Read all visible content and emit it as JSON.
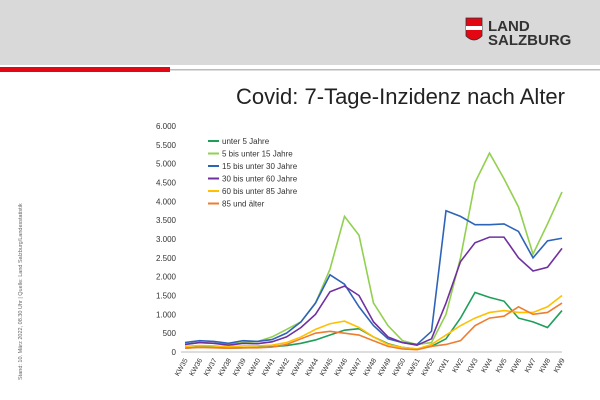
{
  "header": {
    "logo_line1": "LAND",
    "logo_line2": "SALZBURG"
  },
  "side_note": "Stand: 10. März 2022, 08.30 Uhr | Quelle: Land Salzburg/Landesstatistik",
  "chart_data": {
    "type": "line",
    "title": "Covid: 7-Tage-Inzidenz nach Alter",
    "categories": [
      "KW35",
      "KW36",
      "KW37",
      "KW38",
      "KW39",
      "KW40",
      "KW41",
      "KW42",
      "KW43",
      "KW44",
      "KW45",
      "KW46",
      "KW47",
      "KW48",
      "KW49",
      "KW50",
      "KW51",
      "KW52",
      "KW1",
      "KW2",
      "KW3",
      "KW4",
      "KW5",
      "KW6",
      "KW7",
      "KW8",
      "KW9"
    ],
    "ylim": [
      0,
      6000
    ],
    "yticks": [
      0,
      {
        "value": 500,
        "label": "500"
      },
      {
        "value": 1000,
        "label": "1.000"
      },
      {
        "value": 1500,
        "label": "1.500"
      },
      {
        "value": 2000,
        "label": "2.000"
      },
      {
        "value": 2500,
        "label": "2.500"
      },
      {
        "value": 3000,
        "label": "3.000"
      },
      {
        "value": 3500,
        "label": "3.500"
      },
      {
        "value": 4000,
        "label": "4.000"
      },
      {
        "value": 4500,
        "label": "4.500"
      },
      {
        "value": 5000,
        "label": "5.000"
      },
      {
        "value": 5500,
        "label": "5.500"
      },
      {
        "value": 6000,
        "label": "6.000"
      }
    ],
    "grid": false,
    "legend": "upper left",
    "series": [
      {
        "name": "unter 5 Jahre",
        "color": "#1f9e5a",
        "values": [
          100,
          130,
          120,
          100,
          110,
          120,
          140,
          170,
          230,
          320,
          450,
          580,
          620,
          400,
          220,
          120,
          80,
          150,
          350,
          900,
          1580,
          1450,
          1350,
          900,
          800,
          650,
          1100
        ]
      },
      {
        "name": "5 bis unter 15 Jahre",
        "color": "#92d050",
        "values": [
          200,
          250,
          230,
          200,
          250,
          280,
          400,
          600,
          800,
          1300,
          2200,
          3600,
          3100,
          1300,
          700,
          300,
          200,
          250,
          1000,
          2500,
          4500,
          5280,
          4600,
          3850,
          2600,
          3400,
          4250
        ]
      },
      {
        "name": "15 bis unter 30 Jahre",
        "color": "#2e64b8",
        "values": [
          250,
          300,
          280,
          230,
          300,
          280,
          330,
          500,
          800,
          1300,
          2050,
          1800,
          1200,
          700,
          350,
          250,
          200,
          550,
          3750,
          3600,
          3380,
          3380,
          3400,
          3200,
          2500,
          2950,
          3020
        ]
      },
      {
        "name": "30 bis unter 60 Jahre",
        "color": "#7030a0",
        "values": [
          200,
          250,
          230,
          180,
          230,
          220,
          270,
          400,
          650,
          1000,
          1600,
          1750,
          1500,
          800,
          400,
          250,
          180,
          350,
          1300,
          2400,
          2900,
          3050,
          3050,
          2500,
          2150,
          2250,
          2750
        ]
      },
      {
        "name": "60 bis unter 85 Jahre",
        "color": "#ffc000",
        "values": [
          150,
          170,
          160,
          140,
          160,
          160,
          180,
          250,
          400,
          600,
          750,
          820,
          650,
          400,
          200,
          120,
          80,
          200,
          450,
          700,
          900,
          1050,
          1100,
          1050,
          1050,
          1200,
          1500
        ]
      },
      {
        "name": "85 und älter",
        "color": "#ed7d31",
        "values": [
          100,
          120,
          110,
          100,
          110,
          110,
          130,
          200,
          350,
          500,
          550,
          500,
          450,
          300,
          150,
          80,
          60,
          150,
          200,
          300,
          700,
          900,
          950,
          1200,
          1000,
          1050,
          1300
        ]
      }
    ]
  }
}
